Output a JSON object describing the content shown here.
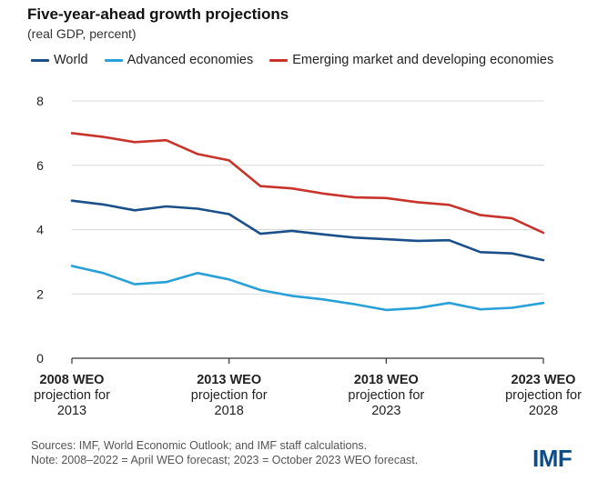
{
  "header": {
    "title": "Five-year-ahead growth projections",
    "subtitle": "(real GDP, percent)"
  },
  "footer": {
    "source_line1": "Sources: IMF, World Economic Outlook; and IMF staff calculations.",
    "source_line2": "Note: 2008–2022 = April WEO forecast; 2023 = October 2023 WEO forecast.",
    "logo_text": "IMF"
  },
  "chart_data": {
    "type": "line",
    "x": [
      2008,
      2009,
      2010,
      2011,
      2012,
      2013,
      2014,
      2015,
      2016,
      2017,
      2018,
      2019,
      2020,
      2021,
      2022,
      2023
    ],
    "xticks": [
      {
        "x": 2008,
        "line1": "2008 WEO",
        "line2": "projection for",
        "line3": "2013"
      },
      {
        "x": 2013,
        "line1": "2013 WEO",
        "line2": "projection for",
        "line3": "2018"
      },
      {
        "x": 2018,
        "line1": "2018 WEO",
        "line2": "projection for",
        "line3": "2023"
      },
      {
        "x": 2023,
        "line1": "2023 WEO",
        "line2": "projection for",
        "line3": "2028"
      }
    ],
    "ylim": [
      0,
      8
    ],
    "yticks": [
      0,
      2,
      4,
      6,
      8
    ],
    "grid": true,
    "legend_position": "top",
    "series": [
      {
        "name": "World",
        "color": "#1a4f8a",
        "values": [
          4.9,
          4.78,
          4.6,
          4.72,
          4.65,
          4.48,
          3.87,
          3.96,
          3.85,
          3.75,
          3.7,
          3.65,
          3.67,
          3.3,
          3.26,
          3.05
        ]
      },
      {
        "name": "Advanced economies",
        "color": "#2aa0d8",
        "values": [
          2.87,
          2.65,
          2.3,
          2.37,
          2.65,
          2.45,
          2.12,
          1.94,
          1.83,
          1.68,
          1.5,
          1.56,
          1.72,
          1.52,
          1.57,
          1.72
        ]
      },
      {
        "name": "Emerging market and developing economies",
        "color": "#c8332b",
        "values": [
          7.0,
          6.88,
          6.72,
          6.78,
          6.35,
          6.15,
          5.35,
          5.28,
          5.12,
          5.0,
          4.98,
          4.85,
          4.77,
          4.45,
          4.35,
          3.9
        ]
      }
    ]
  }
}
